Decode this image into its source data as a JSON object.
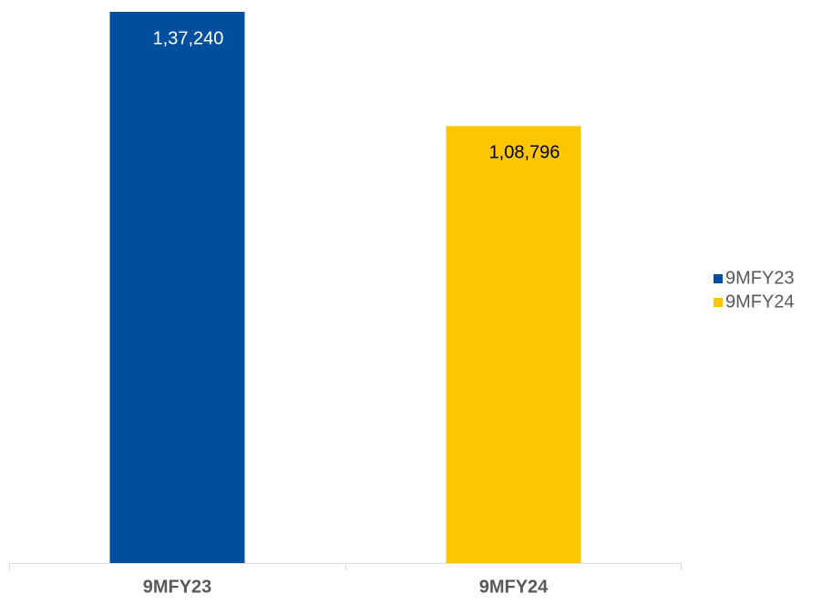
{
  "chart_data": {
    "type": "bar",
    "categories": [
      "9MFY23",
      "9MFY24"
    ],
    "series": [
      {
        "name": "9MFY23",
        "color": "#004f9e",
        "values": [
          137240,
          null
        ],
        "value_labels": [
          "1,37,240",
          null
        ],
        "label_color": "#ffffff"
      },
      {
        "name": "9MFY24",
        "color": "#fcc603",
        "values": [
          null,
          108796
        ],
        "value_labels": [
          null,
          "1,08,796"
        ],
        "label_color": "#000000"
      }
    ]
  }
}
